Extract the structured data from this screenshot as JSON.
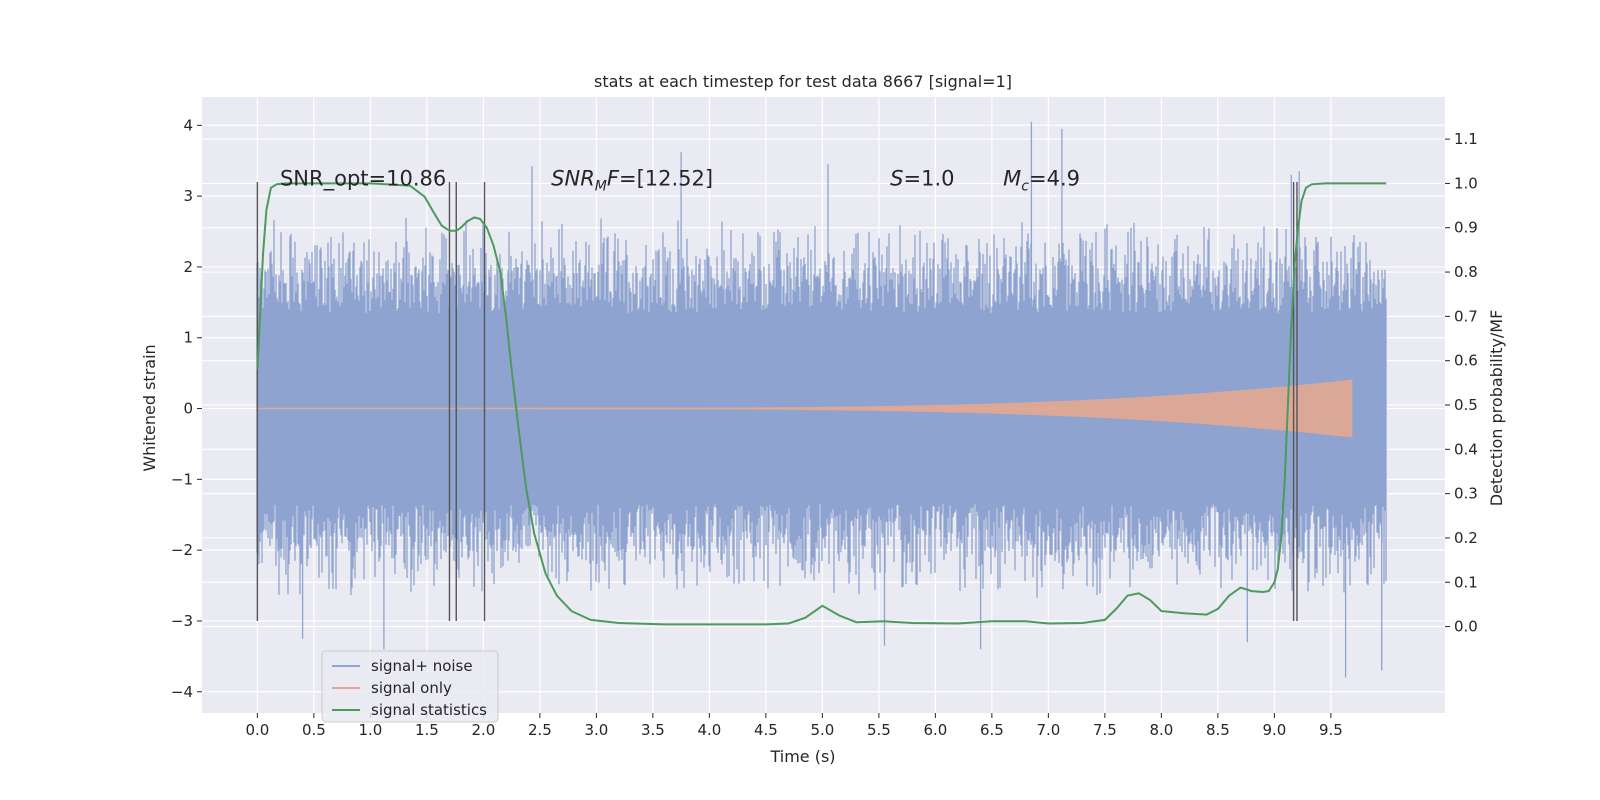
{
  "chart_data": {
    "type": "line",
    "title": "stats at each timestep for test data 8667 [signal=1]",
    "xlabel": "Time (s)",
    "ylabel_left": "Whitened strain",
    "ylabel_right": "Detection probability/MF",
    "xlim": [
      -0.49,
      10.51
    ],
    "ylim_left": [
      -4.3,
      4.4
    ],
    "ylim_right": [
      -0.195,
      1.195
    ],
    "x_ticks": [
      0.0,
      0.5,
      1.0,
      1.5,
      2.0,
      2.5,
      3.0,
      3.5,
      4.0,
      4.5,
      5.0,
      5.5,
      6.0,
      6.5,
      7.0,
      7.5,
      8.0,
      8.5,
      9.0,
      9.5
    ],
    "x_tick_labels": [
      "0.0",
      "0.5",
      "1.0",
      "1.5",
      "2.0",
      "2.5",
      "3.0",
      "3.5",
      "4.0",
      "4.5",
      "5.0",
      "5.5",
      "6.0",
      "6.5",
      "7.0",
      "7.5",
      "8.0",
      "8.5",
      "9.0",
      "9.5"
    ],
    "y_left_ticks": [
      -4,
      -3,
      -2,
      -1,
      0,
      1,
      2,
      3,
      4
    ],
    "y_left_tick_labels": [
      "−4",
      "−3",
      "−2",
      "−1",
      "0",
      "1",
      "2",
      "3",
      "4"
    ],
    "y_right_ticks": [
      0.0,
      0.1,
      0.2,
      0.3,
      0.4,
      0.5,
      0.6,
      0.7,
      0.8,
      0.9,
      1.0,
      1.1
    ],
    "y_right_tick_labels": [
      "0.0",
      "0.1",
      "0.2",
      "0.3",
      "0.4",
      "0.5",
      "0.6",
      "0.7",
      "0.8",
      "0.9",
      "1.0",
      "1.1"
    ],
    "grid": true,
    "legend_position": "lower-left",
    "legend": [
      "signal+ noise",
      "signal only",
      "signal statistics"
    ],
    "annotations": [
      {
        "text": "SNR_opt=10.86",
        "x": 0.2,
        "y": 3.15
      },
      {
        "text": "SNR_M F=[12.52]",
        "x": 2.6,
        "y": 3.15
      },
      {
        "text": "S=1.0",
        "x": 5.6,
        "y": 3.15
      },
      {
        "text": "M_c=4.9",
        "x": 6.6,
        "y": 3.15
      }
    ],
    "vertical_markers_x": [
      0.0,
      1.7,
      1.76,
      2.01,
      9.17,
      9.2
    ],
    "vertical_marker_range": [
      -3.0,
      3.2
    ],
    "series": [
      {
        "name": "signal+ noise",
        "color": "#8fa3d0",
        "axis": "left",
        "x_range": [
          0.0,
          9.99
        ],
        "envelope": {
          "core": 1.35,
          "typical_peak": 2.6,
          "max": 4.05,
          "min": -3.85
        },
        "peaks": [
          {
            "x": 0.4,
            "y": -3.25
          },
          {
            "x": 1.12,
            "y": -3.4
          },
          {
            "x": 2.43,
            "y": 3.42
          },
          {
            "x": 3.75,
            "y": 3.62
          },
          {
            "x": 5.05,
            "y": 3.45
          },
          {
            "x": 5.55,
            "y": -3.35
          },
          {
            "x": 6.4,
            "y": -3.4
          },
          {
            "x": 6.85,
            "y": 4.05
          },
          {
            "x": 7.12,
            "y": 3.95
          },
          {
            "x": 8.76,
            "y": -3.3
          },
          {
            "x": 9.63,
            "y": -3.8
          },
          {
            "x": 9.95,
            "y": -3.7
          },
          {
            "x": 9.15,
            "y": 3.3
          },
          {
            "x": 9.22,
            "y": 3.35
          }
        ]
      },
      {
        "name": "signal only",
        "color": "#e3a890",
        "axis": "left",
        "chirp": {
          "start_x": 2.5,
          "end_x": 9.69,
          "end_amplitude": 0.4,
          "spike_max": 1.1,
          "spike_min": -0.9
        }
      },
      {
        "name": "signal statistics",
        "color": "#4c9a5c",
        "axis": "right",
        "x": [
          0.0,
          0.02,
          0.05,
          0.08,
          0.12,
          0.17,
          0.25,
          0.35,
          0.5,
          1.0,
          1.35,
          1.48,
          1.56,
          1.63,
          1.7,
          1.76,
          1.8,
          1.86,
          1.92,
          1.97,
          2.03,
          2.09,
          2.15,
          2.2,
          2.25,
          2.32,
          2.38,
          2.45,
          2.55,
          2.65,
          2.78,
          2.95,
          3.2,
          3.6,
          4.0,
          4.5,
          4.7,
          4.85,
          5.0,
          5.15,
          5.3,
          5.55,
          5.8,
          6.2,
          6.5,
          6.8,
          7.0,
          7.3,
          7.5,
          7.6,
          7.7,
          7.8,
          7.9,
          8.0,
          8.2,
          8.4,
          8.5,
          8.6,
          8.7,
          8.8,
          8.9,
          8.95,
          9.0,
          9.03,
          9.06,
          9.09,
          9.12,
          9.15,
          9.18,
          9.21,
          9.24,
          9.28,
          9.33,
          9.45,
          9.99
        ],
        "y": [
          0.58,
          0.68,
          0.84,
          0.94,
          0.99,
          0.998,
          1.0,
          1.0,
          1.0,
          1.0,
          0.995,
          0.97,
          0.935,
          0.905,
          0.893,
          0.893,
          0.9,
          0.915,
          0.923,
          0.92,
          0.9,
          0.86,
          0.8,
          0.7,
          0.58,
          0.43,
          0.31,
          0.21,
          0.12,
          0.07,
          0.035,
          0.015,
          0.008,
          0.005,
          0.005,
          0.005,
          0.007,
          0.02,
          0.047,
          0.025,
          0.01,
          0.012,
          0.008,
          0.007,
          0.012,
          0.012,
          0.007,
          0.008,
          0.015,
          0.04,
          0.07,
          0.075,
          0.06,
          0.035,
          0.03,
          0.027,
          0.04,
          0.07,
          0.088,
          0.08,
          0.078,
          0.08,
          0.1,
          0.13,
          0.2,
          0.32,
          0.5,
          0.68,
          0.82,
          0.9,
          0.96,
          0.99,
          0.998,
          1.0,
          1.0
        ]
      }
    ]
  }
}
